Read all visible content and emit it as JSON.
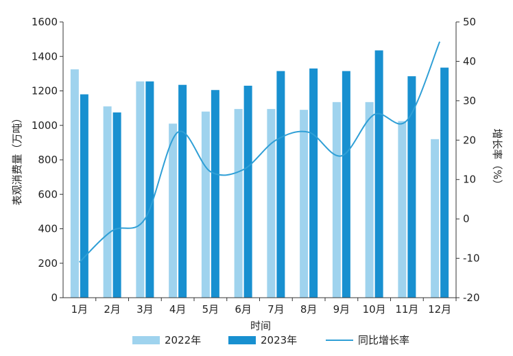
{
  "chart_data": {
    "type": "bar",
    "title": "",
    "xlabel": "时间",
    "ylabel": "表观消费量（万吨）",
    "y2label": "增长率（%）",
    "categories": [
      "1月",
      "2月",
      "3月",
      "4月",
      "5月",
      "6月",
      "7月",
      "8月",
      "9月",
      "10月",
      "11月",
      "12月"
    ],
    "ylim": [
      0,
      1600
    ],
    "yticks": [
      0,
      200,
      400,
      600,
      800,
      1000,
      1200,
      1400,
      1600
    ],
    "y2lim": [
      -20,
      50
    ],
    "y2ticks": [
      -20,
      -10,
      0,
      10,
      20,
      30,
      40,
      50
    ],
    "grid": false,
    "legend_position": "bottom",
    "series": [
      {
        "name": "2022年",
        "type": "bar",
        "axis": "left",
        "color": "#9fd3ee",
        "values": [
          1325,
          1110,
          1255,
          1010,
          1080,
          1095,
          1095,
          1090,
          1135,
          1135,
          1025,
          920
        ]
      },
      {
        "name": "2023年",
        "type": "bar",
        "axis": "left",
        "color": "#1890d0",
        "values": [
          1180,
          1075,
          1255,
          1235,
          1205,
          1230,
          1315,
          1330,
          1315,
          1435,
          1285,
          1335
        ]
      },
      {
        "name": "同比增长率",
        "type": "line",
        "axis": "right",
        "color": "#2f9fd6",
        "values": [
          -11,
          -3,
          0,
          22,
          12,
          12.5,
          20,
          22,
          16,
          26.5,
          25,
          45
        ]
      }
    ]
  }
}
